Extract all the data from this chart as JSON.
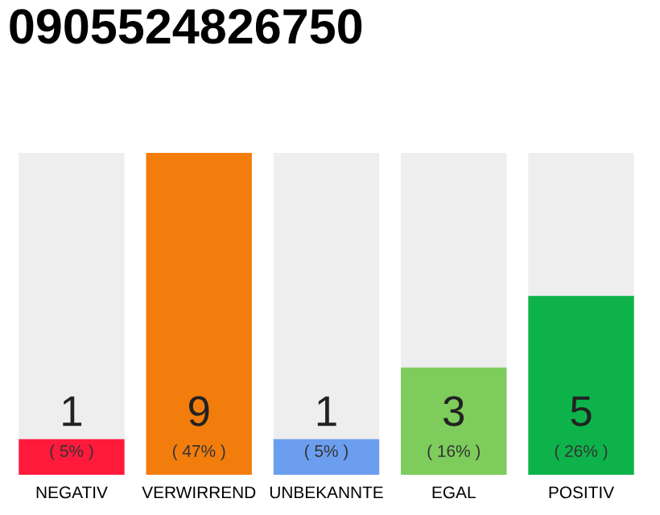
{
  "chart_data": {
    "type": "bar",
    "title": "0905524826750",
    "categories": [
      "NEGATIV",
      "VERWIRREND",
      "UNBEKANNTE",
      "EGAL",
      "POSITIV"
    ],
    "values": [
      1,
      9,
      1,
      3,
      5
    ],
    "colors": [
      "#ff1a3c",
      "#f27d0c",
      "#6c9ef0",
      "#7dcc5c",
      "#0db34a"
    ],
    "data_labels": true,
    "annotations": [
      "( 5% )",
      "( 47% )",
      "( 5% )",
      "( 16% )",
      "( 26% )"
    ],
    "grid": false,
    "legend": false
  }
}
